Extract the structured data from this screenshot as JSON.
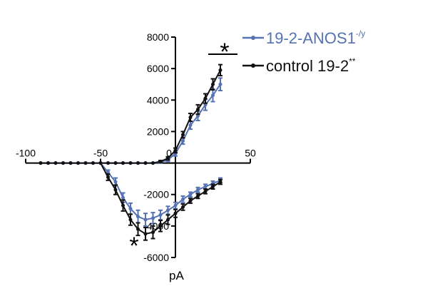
{
  "chart_data": {
    "type": "line",
    "xlim": [
      -100,
      50
    ],
    "ylim": [
      -6000,
      8000
    ],
    "x_ticks": [
      -100,
      -50,
      0,
      50
    ],
    "y_ticks": [
      -6000,
      -4000,
      -2000,
      0,
      2000,
      4000,
      6000,
      8000
    ],
    "ylabel": "pA",
    "legend_position": "top-right",
    "annotations": [
      "*",
      "*"
    ],
    "series": [
      {
        "name": "19-2-ANOS1",
        "name_superscript": "-/y",
        "color": "#5572b2",
        "x": [
          -90,
          -85,
          -80,
          -75,
          -70,
          -65,
          -60,
          -55,
          -50,
          -45,
          -40,
          -35,
          -30,
          -25,
          -20,
          -15,
          -10,
          -5,
          0,
          5,
          10,
          15,
          20,
          25,
          30,
          35,
          40
        ],
        "y": [
          0,
          0,
          0,
          0,
          0,
          0,
          0,
          0,
          0,
          0,
          0,
          0,
          0,
          0,
          0,
          0,
          50,
          200,
          600,
          1400,
          2400,
          3000,
          3700,
          4300,
          5000,
          null,
          null
        ],
        "y_errors": [
          0,
          0,
          0,
          0,
          0,
          0,
          0,
          0,
          0,
          0,
          0,
          0,
          0,
          0,
          0,
          0,
          50,
          100,
          150,
          200,
          250,
          300,
          350,
          400,
          400,
          null,
          null
        ]
      },
      {
        "name": "control 19-2",
        "name_superscript": "**",
        "color": "#111111",
        "x": [
          -90,
          -85,
          -80,
          -75,
          -70,
          -65,
          -60,
          -55,
          -50,
          -45,
          -40,
          -35,
          -30,
          -25,
          -20,
          -15,
          -10,
          -5,
          0,
          5,
          10,
          15,
          20,
          25,
          30,
          35,
          40
        ],
        "y": [
          0,
          0,
          0,
          0,
          0,
          0,
          0,
          0,
          0,
          0,
          0,
          0,
          0,
          0,
          0,
          0,
          100,
          300,
          800,
          1800,
          2900,
          3400,
          4100,
          5000,
          5900,
          null,
          null
        ],
        "y_errors": [
          0,
          0,
          0,
          0,
          0,
          0,
          0,
          0,
          0,
          0,
          0,
          0,
          0,
          0,
          0,
          0,
          60,
          100,
          150,
          200,
          250,
          300,
          300,
          350,
          350,
          null,
          null
        ]
      },
      {
        "name": "",
        "color": "#5572b2",
        "x": [
          -50,
          -45,
          -40,
          -35,
          -30,
          -25,
          -20,
          -15,
          -10,
          -5,
          0,
          5,
          10,
          15,
          20,
          25,
          30,
          35,
          40
        ],
        "y": [
          0,
          -600,
          -1200,
          -2200,
          -2900,
          -3400,
          -3600,
          -3500,
          -3300,
          -3000,
          -2700,
          -2300,
          -2000,
          -1700,
          -1500,
          -1300,
          -1100,
          null,
          null
        ],
        "y_errors": [
          0,
          150,
          250,
          300,
          350,
          400,
          400,
          350,
          300,
          250,
          200,
          200,
          150,
          150,
          150,
          150,
          150,
          null,
          null
        ]
      },
      {
        "name": "",
        "color": "#111111",
        "x": [
          -50,
          -45,
          -40,
          -35,
          -30,
          -25,
          -20,
          -15,
          -10,
          -5,
          0,
          5,
          10,
          15,
          20,
          25,
          30,
          35,
          40
        ],
        "y": [
          0,
          -900,
          -1700,
          -2700,
          -3600,
          -4200,
          -4500,
          -4400,
          -4000,
          -3600,
          -3200,
          -2800,
          -2400,
          -2100,
          -1800,
          -1500,
          -1200,
          null,
          null
        ],
        "y_errors": [
          0,
          200,
          300,
          350,
          350,
          400,
          400,
          400,
          350,
          300,
          250,
          200,
          150,
          150,
          150,
          150,
          150,
          null,
          null
        ]
      }
    ]
  }
}
